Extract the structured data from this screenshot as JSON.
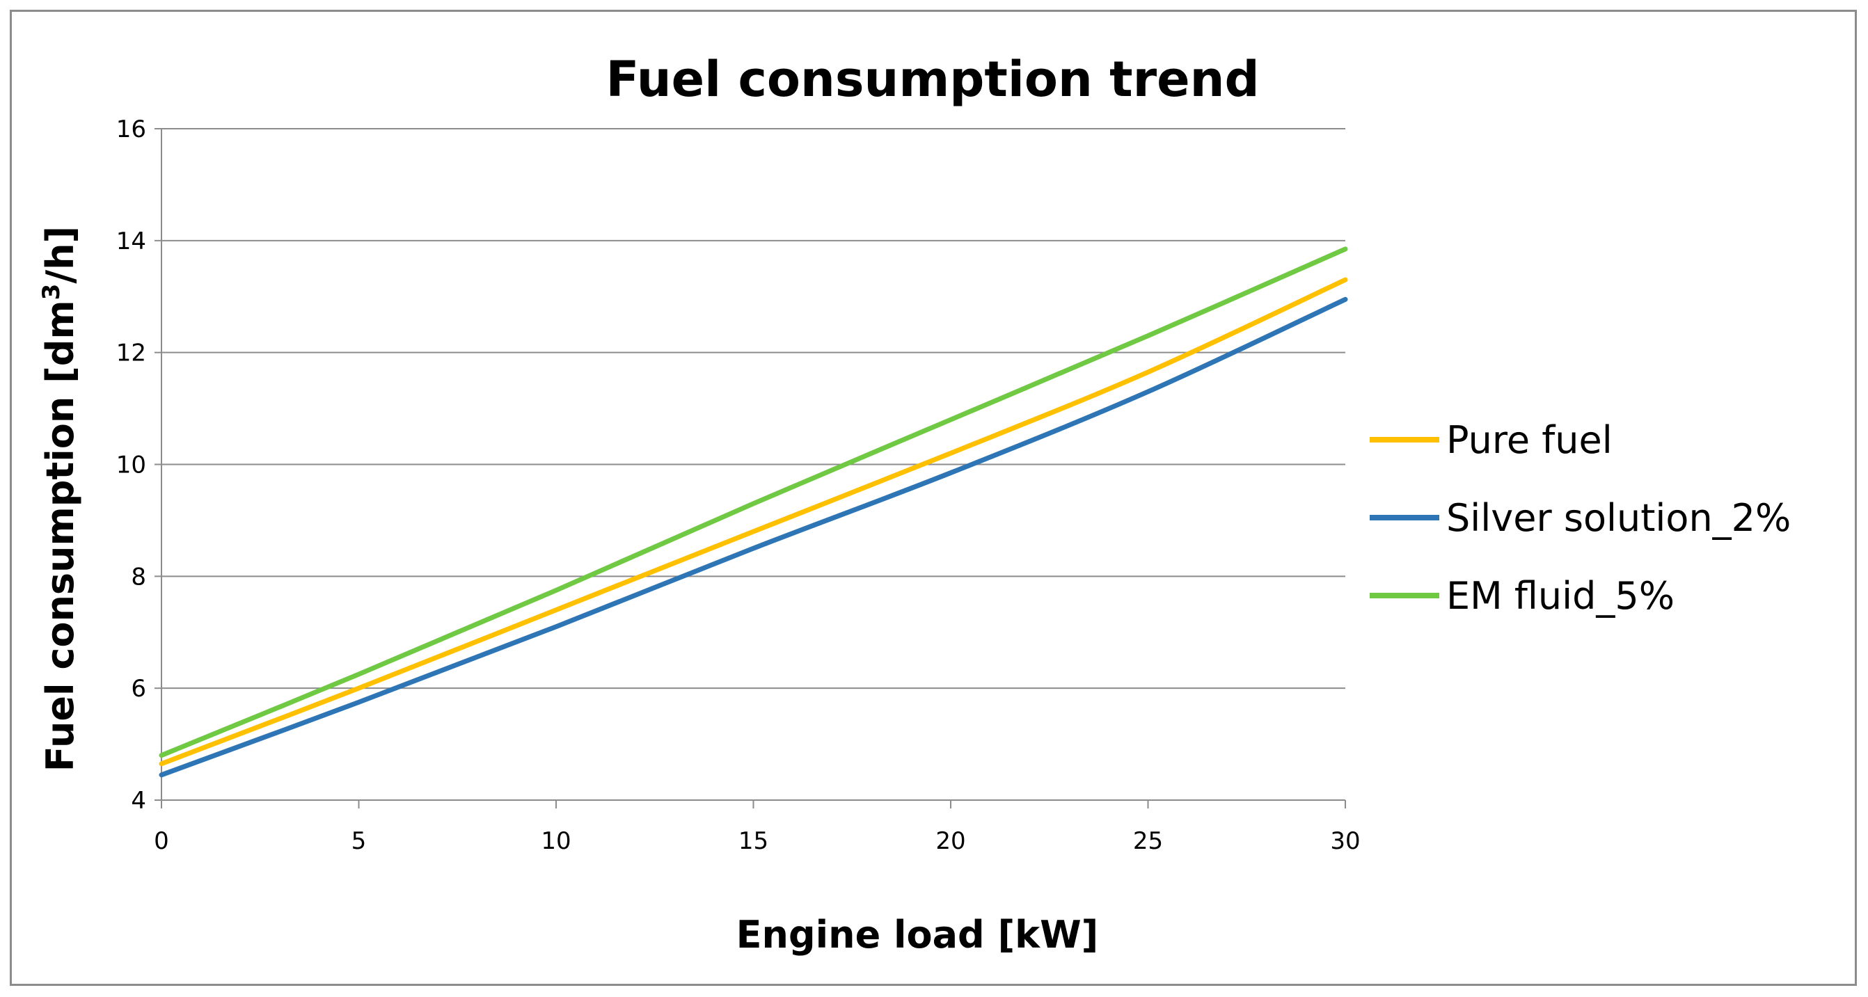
{
  "chart_data": {
    "type": "line",
    "title": "Fuel consumption trend",
    "xlabel": "Engine load [kW]",
    "ylabel": "Fuel consumption [dm³/h]",
    "ylabel_main": "Fuel consumption [dm",
    "ylabel_sup": "3",
    "ylabel_end": "/h]",
    "xlim": [
      0,
      30
    ],
    "ylim": [
      4,
      16
    ],
    "x_ticks": [
      "0",
      "5",
      "10",
      "15",
      "20",
      "25",
      "30"
    ],
    "y_ticks": [
      "4",
      "6",
      "8",
      "10",
      "12",
      "14",
      "16"
    ],
    "grid": true,
    "legend_position": "right",
    "x": [
      0,
      5,
      10,
      15,
      20,
      25,
      30
    ],
    "series": [
      {
        "name": "Pure fuel",
        "color": "#FFC000",
        "values": [
          4.65,
          6.0,
          7.4,
          8.8,
          10.2,
          11.65,
          13.3
        ]
      },
      {
        "name": "Silver solution_2%",
        "color": "#2E75B6",
        "values": [
          4.45,
          5.75,
          7.1,
          8.5,
          9.85,
          11.3,
          12.95
        ]
      },
      {
        "name": "EM fluid_5%",
        "color": "#70C943",
        "values": [
          4.8,
          6.25,
          7.75,
          9.3,
          10.8,
          12.3,
          13.85
        ]
      }
    ]
  }
}
